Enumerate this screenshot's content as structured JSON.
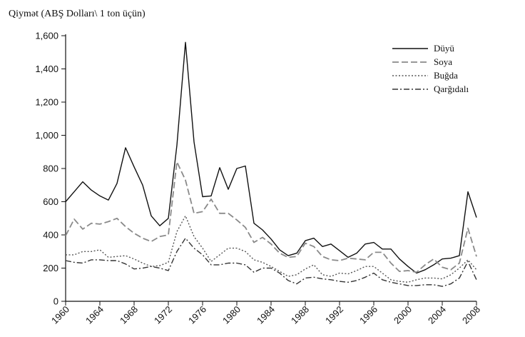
{
  "chart_data": {
    "type": "line",
    "title": "",
    "ylabel": "Qiymət (ABŞ Dolları\\ 1 ton üçün)",
    "xlabel": "",
    "xlim": [
      1960,
      2008
    ],
    "ylim": [
      0,
      1600
    ],
    "x_ticks": [
      1960,
      1964,
      1968,
      1972,
      1976,
      1980,
      1984,
      1988,
      1992,
      1996,
      2000,
      2004,
      2008
    ],
    "x_tick_labels": [
      "1960",
      "1964",
      "1968",
      "1972",
      "1976",
      "1980",
      "1984",
      "1988",
      "1992",
      "1996",
      "2000",
      "2004",
      "2008"
    ],
    "y_ticks": [
      0,
      200,
      400,
      600,
      800,
      1000,
      1200,
      1400,
      1600
    ],
    "y_tick_labels": [
      "0",
      "200",
      "400",
      "600",
      "800",
      "1,000",
      "1,200",
      "1,400",
      "1,600"
    ],
    "legend_position": "top-right",
    "x": [
      1960,
      1961,
      1962,
      1963,
      1964,
      1965,
      1966,
      1967,
      1968,
      1969,
      1970,
      1971,
      1972,
      1973,
      1974,
      1975,
      1976,
      1977,
      1978,
      1979,
      1980,
      1981,
      1982,
      1983,
      1984,
      1985,
      1986,
      1987,
      1988,
      1989,
      1990,
      1991,
      1992,
      1993,
      1994,
      1995,
      1996,
      1997,
      1998,
      1999,
      2000,
      2001,
      2002,
      2003,
      2004,
      2005,
      2006,
      2007,
      2008
    ],
    "series": [
      {
        "name": "Düyü",
        "color": "#111111",
        "style": "solid",
        "values": [
          600,
          660,
          720,
          670,
          635,
          610,
          710,
          925,
          810,
          700,
          515,
          455,
          500,
          940,
          1560,
          960,
          630,
          635,
          805,
          675,
          800,
          815,
          470,
          430,
          375,
          310,
          275,
          290,
          365,
          380,
          330,
          345,
          305,
          265,
          290,
          345,
          355,
          315,
          315,
          255,
          210,
          170,
          190,
          220,
          255,
          260,
          275,
          660,
          505
        ]
      },
      {
        "name": "Soya",
        "color": "#8a8a8a",
        "style": "dashed",
        "values": [
          395,
          495,
          435,
          470,
          465,
          480,
          500,
          450,
          410,
          380,
          360,
          390,
          400,
          840,
          730,
          530,
          540,
          615,
          530,
          530,
          490,
          445,
          355,
          385,
          345,
          290,
          265,
          270,
          350,
          330,
          270,
          250,
          245,
          260,
          255,
          250,
          295,
          295,
          230,
          180,
          185,
          175,
          220,
          255,
          205,
          190,
          230,
          440,
          270
        ]
      },
      {
        "name": "Buğda",
        "color": "#555555",
        "style": "dotted",
        "values": [
          280,
          280,
          300,
          300,
          310,
          265,
          270,
          275,
          255,
          230,
          210,
          215,
          235,
          420,
          515,
          390,
          320,
          240,
          280,
          320,
          320,
          300,
          250,
          235,
          210,
          180,
          150,
          160,
          195,
          220,
          160,
          150,
          170,
          165,
          185,
          210,
          210,
          170,
          130,
          120,
          115,
          130,
          140,
          140,
          135,
          160,
          200,
          250,
          190
        ]
      },
      {
        "name": "Qarğıdalı",
        "color": "#333333",
        "style": "dashdot",
        "values": [
          245,
          235,
          230,
          250,
          250,
          245,
          245,
          225,
          195,
          200,
          210,
          200,
          185,
          300,
          380,
          320,
          280,
          220,
          220,
          230,
          230,
          220,
          175,
          200,
          200,
          170,
          125,
          105,
          140,
          145,
          135,
          130,
          120,
          115,
          125,
          145,
          170,
          130,
          115,
          105,
          95,
          95,
          100,
          100,
          90,
          105,
          140,
          240,
          130
        ]
      }
    ]
  }
}
